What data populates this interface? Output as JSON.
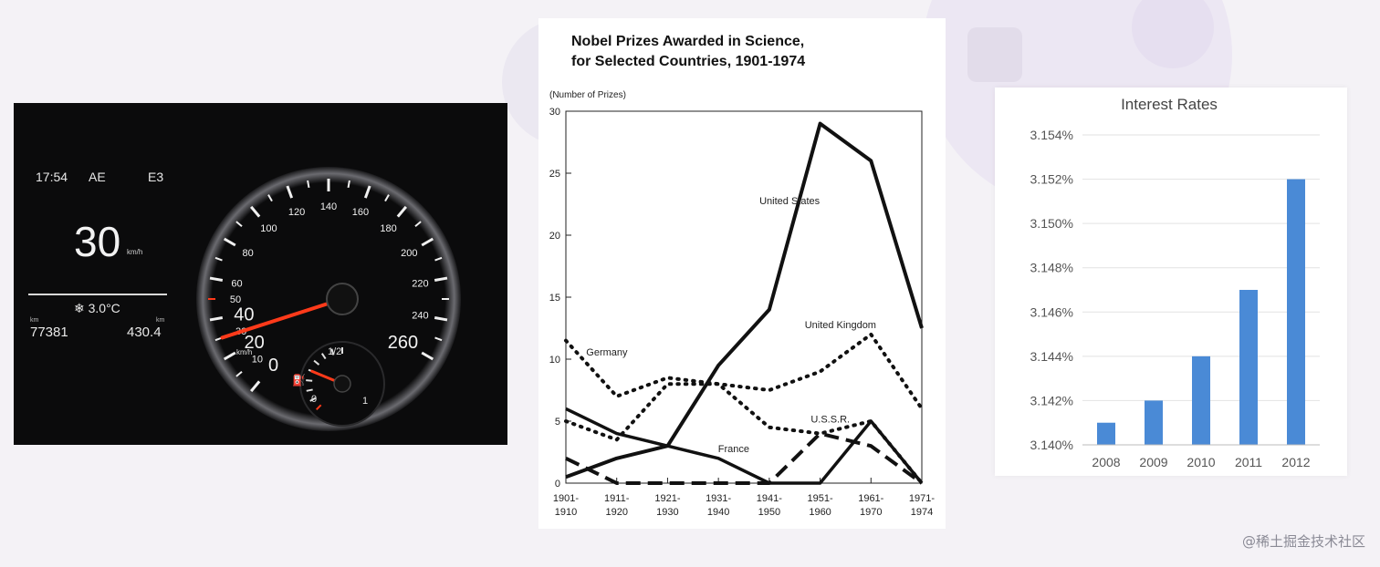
{
  "dashboard": {
    "clock": "17:54",
    "mode_left": "AE",
    "mode_right": "E3",
    "speed": "30",
    "speed_unit": "km/h",
    "temperature": "❄ 3.0°C",
    "odometer": "77381",
    "trip": "430.4",
    "odo_unit": "km",
    "trip_unit": "km",
    "speedometer_unit": "km/h",
    "speedometer_ticks": [
      "0",
      "10",
      "20",
      "30",
      "40",
      "50",
      "60",
      "80",
      "100",
      "120",
      "140",
      "160",
      "180",
      "200",
      "220",
      "240",
      "260"
    ],
    "gauge_labels": [
      "0",
      "1/2",
      "1"
    ],
    "needle_speed": 30,
    "fuel_level": 0.5
  },
  "nobel": {
    "title_line1": "Nobel Prizes Awarded in Science,",
    "title_line2": "for Selected Countries, 1901-1974",
    "ylabel": "(Number of Prizes)"
  },
  "rates": {
    "title": "Interest Rates"
  },
  "watermark": "@稀土掘金技术社区",
  "chart_data": [
    {
      "type": "line",
      "title": "Nobel Prizes Awarded in Science, for Selected Countries, 1901-1974",
      "ylabel": "(Number of Prizes)",
      "ylim": [
        0,
        30
      ],
      "yticks": [
        "0",
        "5",
        "10",
        "15",
        "20",
        "25",
        "30"
      ],
      "categories": [
        [
          "1901-",
          "1910"
        ],
        [
          "1911-",
          "1920"
        ],
        [
          "1921-",
          "1930"
        ],
        [
          "1931-",
          "1940"
        ],
        [
          "1941-",
          "1950"
        ],
        [
          "1951-",
          "1960"
        ],
        [
          "1961-",
          "1970"
        ],
        [
          "1971-",
          "1974"
        ]
      ],
      "series": [
        {
          "name": "United States",
          "style": "solid",
          "values": [
            0.5,
            2,
            3,
            9.5,
            14,
            29,
            26,
            12.5
          ]
        },
        {
          "name": "United Kingdom",
          "style": "dotted",
          "values": [
            5,
            3.5,
            8,
            8,
            7.5,
            9,
            12,
            6
          ]
        },
        {
          "name": "Germany",
          "style": "dotted",
          "values": [
            11.5,
            7,
            8.5,
            8,
            4.5,
            4,
            5,
            0
          ]
        },
        {
          "name": "France",
          "style": "solid",
          "values": [
            6,
            4,
            3,
            2,
            0,
            0,
            5,
            0
          ]
        },
        {
          "name": "U.S.S.R.",
          "style": "dashed",
          "values": [
            2,
            0,
            0,
            0,
            0,
            4,
            3,
            0
          ]
        }
      ]
    },
    {
      "type": "bar",
      "title": "Interest Rates",
      "categories": [
        "2008",
        "2009",
        "2010",
        "2011",
        "2012"
      ],
      "values": [
        3.141,
        3.142,
        3.144,
        3.147,
        3.152
      ],
      "ylim": [
        3.14,
        3.154
      ],
      "yticks": [
        "3.140%",
        "3.142%",
        "3.144%",
        "3.146%",
        "3.148%",
        "3.150%",
        "3.152%",
        "3.154%"
      ],
      "bar_color": "#4a8ad6",
      "grid": true
    }
  ]
}
